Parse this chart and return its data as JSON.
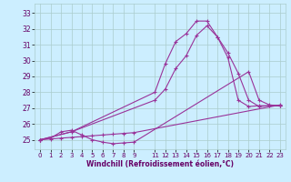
{
  "xlabel": "Windchill (Refroidissement éolien,°C)",
  "bg_color": "#cceeff",
  "grid_color": "#aacccc",
  "line_color": "#993399",
  "marker": "+",
  "xlim": [
    -0.5,
    23.5
  ],
  "ylim": [
    24.4,
    33.6
  ],
  "yticks": [
    25,
    26,
    27,
    28,
    29,
    30,
    31,
    32,
    33
  ],
  "xticks": [
    0,
    1,
    2,
    3,
    4,
    5,
    6,
    7,
    8,
    9,
    11,
    12,
    13,
    14,
    15,
    16,
    17,
    18,
    19,
    20,
    21,
    22,
    23
  ],
  "series": [
    {
      "x": [
        0,
        1,
        2,
        3,
        4,
        5,
        6,
        7,
        8,
        9,
        23
      ],
      "y": [
        25.0,
        25.05,
        25.1,
        25.15,
        25.2,
        25.25,
        25.3,
        25.35,
        25.4,
        25.45,
        27.2
      ]
    },
    {
      "x": [
        0,
        1,
        2,
        3,
        4,
        5,
        6,
        7,
        8,
        9,
        20,
        21,
        22,
        23
      ],
      "y": [
        25.0,
        25.1,
        25.5,
        25.6,
        25.3,
        25.0,
        24.85,
        24.75,
        24.8,
        24.85,
        29.3,
        27.5,
        27.2,
        27.15
      ]
    },
    {
      "x": [
        0,
        3,
        11,
        12,
        13,
        14,
        15,
        16,
        17,
        18,
        19,
        20,
        21,
        22,
        23
      ],
      "y": [
        25.0,
        25.5,
        27.5,
        28.2,
        29.5,
        30.3,
        31.6,
        32.2,
        31.5,
        30.5,
        29.2,
        27.5,
        27.1,
        27.15,
        27.15
      ]
    },
    {
      "x": [
        0,
        3,
        11,
        12,
        13,
        14,
        15,
        16,
        17,
        18,
        19,
        20,
        21,
        22,
        23
      ],
      "y": [
        25.0,
        25.5,
        28.0,
        29.8,
        31.2,
        31.7,
        32.5,
        32.5,
        31.5,
        30.2,
        27.5,
        27.1,
        27.15,
        27.15,
        27.15
      ]
    }
  ]
}
